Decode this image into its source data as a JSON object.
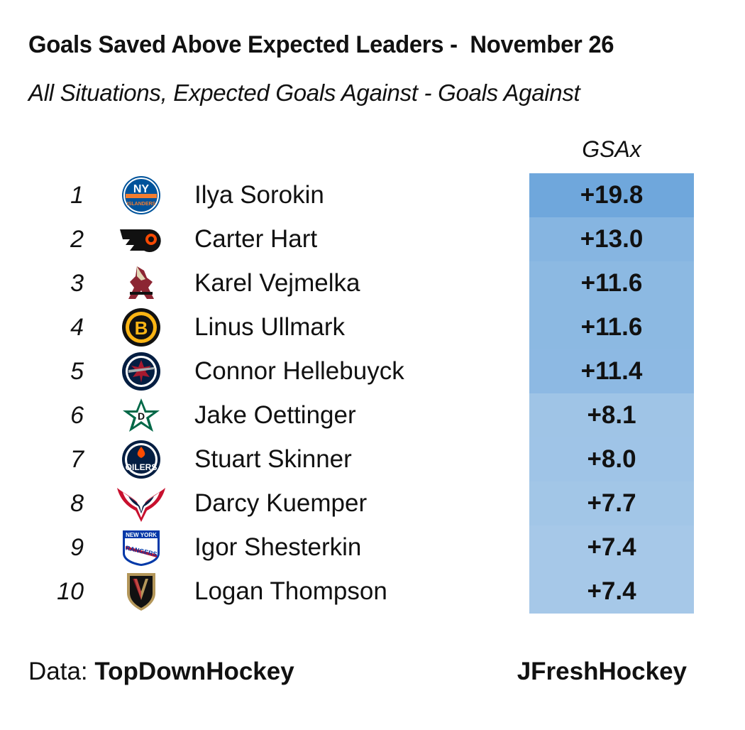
{
  "chart_data": {
    "type": "table",
    "title": "Goals Saved Above Expected Leaders -  November 26",
    "subtitle": "All Situations, Expected Goals Against - Goals Against",
    "column_header": "GSAx",
    "rows": [
      {
        "rank": "1",
        "player": "Ilya Sorokin",
        "team_logo": "new-york-islanders-logo-icon",
        "gsax_label": "+19.8",
        "gsax": 19.8
      },
      {
        "rank": "2",
        "player": "Carter Hart",
        "team_logo": "philadelphia-flyers-logo-icon",
        "gsax_label": "+13.0",
        "gsax": 13.0
      },
      {
        "rank": "3",
        "player": "Karel Vejmelka",
        "team_logo": "arizona-coyotes-logo-icon",
        "gsax_label": "+11.6",
        "gsax": 11.6
      },
      {
        "rank": "4",
        "player": "Linus Ullmark",
        "team_logo": "boston-bruins-logo-icon",
        "gsax_label": "+11.6",
        "gsax": 11.6
      },
      {
        "rank": "5",
        "player": "Connor Hellebuyck",
        "team_logo": "winnipeg-jets-logo-icon",
        "gsax_label": "+11.4",
        "gsax": 11.4
      },
      {
        "rank": "6",
        "player": "Jake Oettinger",
        "team_logo": "dallas-stars-logo-icon",
        "gsax_label": "+8.1",
        "gsax": 8.1
      },
      {
        "rank": "7",
        "player": "Stuart Skinner",
        "team_logo": "edmonton-oilers-logo-icon",
        "gsax_label": "+8.0",
        "gsax": 8.0
      },
      {
        "rank": "8",
        "player": "Darcy Kuemper",
        "team_logo": "washington-capitals-logo-icon",
        "gsax_label": "+7.7",
        "gsax": 7.7
      },
      {
        "rank": "9",
        "player": "Igor Shesterkin",
        "team_logo": "new-york-rangers-logo-icon",
        "gsax_label": "+7.4",
        "gsax": 7.4
      },
      {
        "rank": "10",
        "player": "Logan Thompson",
        "team_logo": "vegas-golden-knights-logo-icon",
        "gsax_label": "+7.4",
        "gsax": 7.4
      }
    ],
    "color_scale": {
      "low": "#a6c8e8",
      "high": "#6fa7dc"
    }
  },
  "footer": {
    "source_prefix": "Data: ",
    "source_name": "TopDownHockey",
    "credit": "JFreshHockey"
  }
}
